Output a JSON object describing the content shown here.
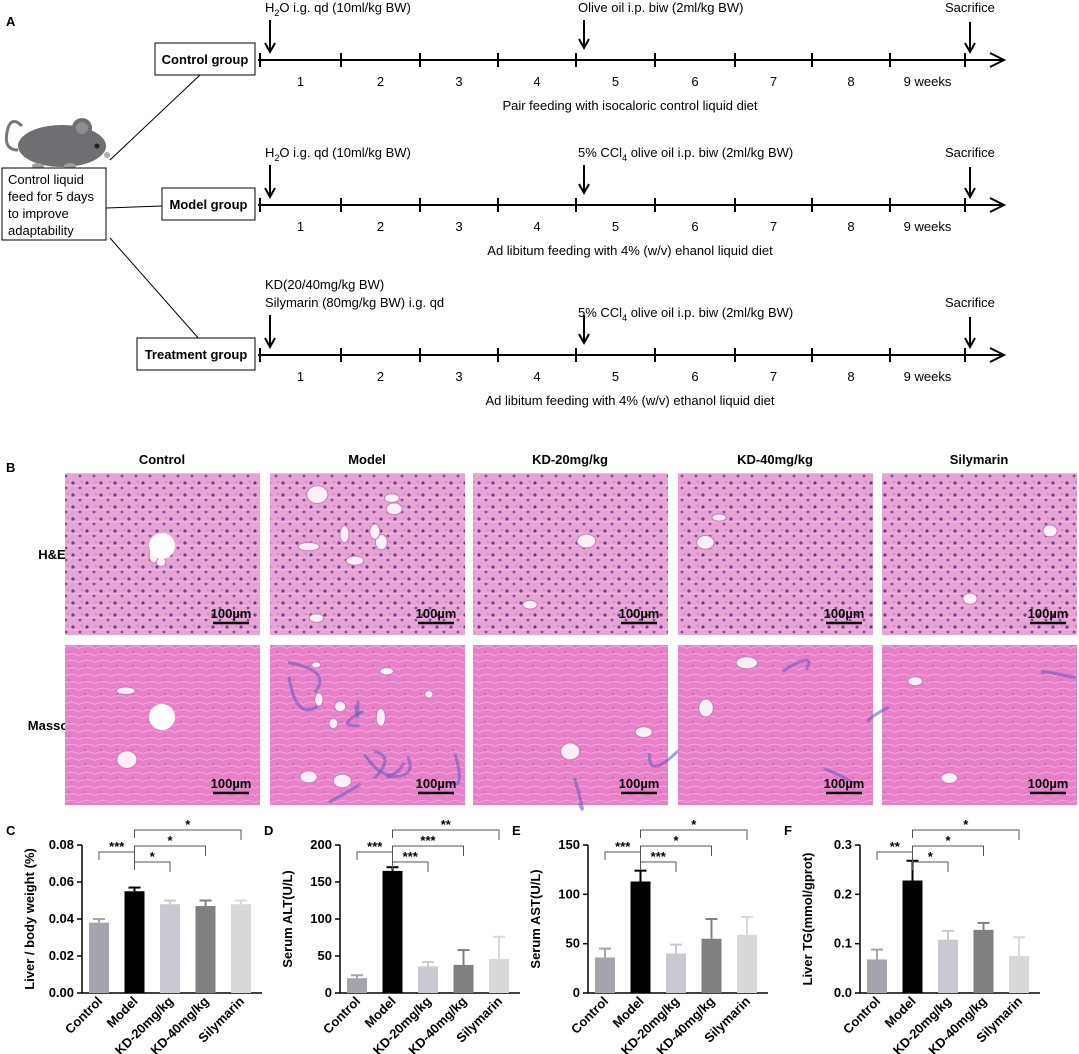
{
  "panel_a": {
    "label": "A",
    "pretreatment": [
      "Control liquid",
      "feed for 5 days",
      "to improve",
      "adaptability"
    ],
    "weeks": [
      "1",
      "2",
      "3",
      "4",
      "5",
      "6",
      "7",
      "8",
      "9 weeks"
    ],
    "groups": [
      {
        "name": "Control group",
        "start": [
          [
            "H",
            "2",
            "O i.g. qd (10ml/kg BW)"
          ]
        ],
        "mid": [
          [
            "Olive oil  i.p. biw (2ml/kg BW)"
          ]
        ],
        "end": "Sacrifice",
        "caption": "Pair feeding with isocaloric control liquid diet"
      },
      {
        "name": "Model group",
        "start": [
          [
            "H",
            "2",
            "O i.g. qd (10ml/kg BW)"
          ]
        ],
        "mid": [
          [
            "5% CCl",
            "4",
            " olive oil  i.p. biw (2ml/kg BW)"
          ]
        ],
        "end": "Sacrifice",
        "caption": "Ad libitum feeding with 4% (w/v) ehanol liquid diet"
      },
      {
        "name": "Treatment group",
        "start": [
          [
            "KD(20/40mg/kg BW)"
          ],
          [
            "Silymarin (80mg/kg BW) i.g. qd"
          ]
        ],
        "mid": [
          [
            "5% CCl",
            "4",
            " olive oil  i.p. biw (2ml/kg BW)"
          ]
        ],
        "end": "Sacrifice",
        "caption": "Ad libitum feeding with 4% (w/v) ethanol liquid diet"
      }
    ]
  },
  "panel_b": {
    "label": "B",
    "columns": [
      "Control",
      "Model",
      "KD-20mg/kg",
      "KD-40mg/kg",
      "Silymarin"
    ],
    "rows": [
      "H&E",
      "Masson"
    ],
    "scale_bar": "100µm"
  },
  "chart_data": [
    {
      "type": "bar",
      "label": "C",
      "y_label": "Liver / body weight  (%)",
      "categories": [
        "Control",
        "Model",
        "KD-20mg/kg",
        "KD-40mg/kg",
        "Silymarin"
      ],
      "values": [
        0.038,
        0.055,
        0.048,
        0.047,
        0.048
      ],
      "errors": [
        0.002,
        0.002,
        0.002,
        0.003,
        0.002
      ],
      "colors": [
        "#a4a4ac",
        "#000000",
        "#c9c9d1",
        "#808080",
        "#d8d8d8"
      ],
      "ylim": [
        0,
        0.08
      ],
      "yticks": [
        {
          "value": 0,
          "label": "0.00"
        },
        0.02,
        0.04,
        0.06,
        0.08
      ],
      "significance": [
        "***",
        "*",
        "*",
        "*"
      ]
    },
    {
      "type": "bar",
      "label": "D",
      "y_label": "Serum ALT(U/L)",
      "categories": [
        "Control",
        "Model",
        "KD-20mg/kg",
        "KD-40mg/kg",
        "Silymarin"
      ],
      "values": [
        20,
        165,
        36,
        38,
        46
      ],
      "errors": [
        4,
        5,
        6,
        20,
        30
      ],
      "colors": [
        "#a4a4ac",
        "#000000",
        "#c9c9d1",
        "#808080",
        "#d8d8d8"
      ],
      "ylim": [
        0,
        200
      ],
      "yticks": [
        0,
        50,
        100,
        150,
        200
      ],
      "significance": [
        "***",
        "***",
        "***",
        "**"
      ]
    },
    {
      "type": "bar",
      "label": "E",
      "y_label": "Serum AST(U/L)",
      "categories": [
        "Control",
        "Model",
        "KD-20mg/kg",
        "KD-40mg/kg",
        "Silymarin"
      ],
      "values": [
        36,
        113,
        40,
        55,
        59
      ],
      "errors": [
        9,
        11,
        9,
        20,
        18
      ],
      "colors": [
        "#a4a4ac",
        "#000000",
        "#c9c9d1",
        "#808080",
        "#d8d8d8"
      ],
      "ylim": [
        0,
        150
      ],
      "yticks": [
        0,
        50,
        100,
        150
      ],
      "significance": [
        "***",
        "***",
        "*",
        "*"
      ]
    },
    {
      "type": "bar",
      "label": "F",
      "y_label": "Liver TG(mmol/gprot)",
      "categories": [
        "Control",
        "Model",
        "KD-20mg/kg",
        "KD-40mg/kg",
        "Silymarin"
      ],
      "values": [
        0.068,
        0.228,
        0.108,
        0.128,
        0.075
      ],
      "errors": [
        0.02,
        0.04,
        0.018,
        0.014,
        0.038
      ],
      "colors": [
        "#a4a4ac",
        "#000000",
        "#c9c9d1",
        "#808080",
        "#d8d8d8"
      ],
      "ylim": [
        0,
        0.3
      ],
      "yticks": [
        {
          "value": 0,
          "label": "0.0"
        },
        0.1,
        0.2,
        0.3
      ],
      "significance": [
        "**",
        "*",
        "*",
        "*"
      ]
    }
  ]
}
